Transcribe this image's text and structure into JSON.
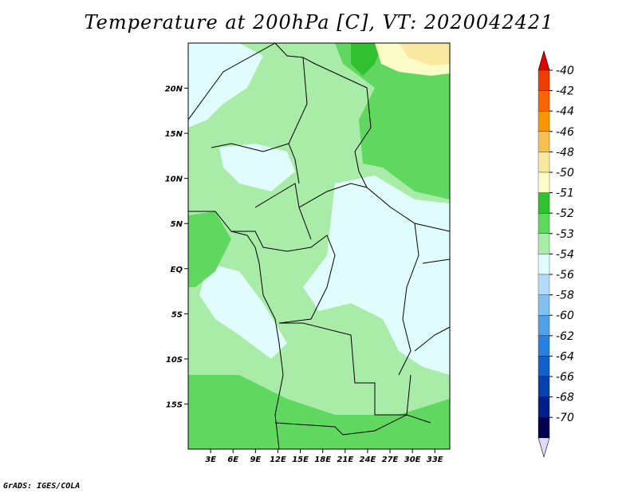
{
  "title": "Temperature at 200hPa [C], VT: 2020042421",
  "credit": "GrADS: IGES/COLA",
  "map": {
    "lon_range": [
      0,
      35
    ],
    "lat_range": [
      -20,
      25
    ],
    "lon_ticks": [
      {
        "value": 3,
        "label": "3E"
      },
      {
        "value": 6,
        "label": "6E"
      },
      {
        "value": 9,
        "label": "9E"
      },
      {
        "value": 12,
        "label": "12E"
      },
      {
        "value": 15,
        "label": "15E"
      },
      {
        "value": 18,
        "label": "18E"
      },
      {
        "value": 21,
        "label": "21E"
      },
      {
        "value": 24,
        "label": "24E"
      },
      {
        "value": 27,
        "label": "27E"
      },
      {
        "value": 30,
        "label": "30E"
      },
      {
        "value": 33,
        "label": "33E"
      }
    ],
    "lat_ticks": [
      {
        "value": 20,
        "label": "20N"
      },
      {
        "value": 15,
        "label": "15N"
      },
      {
        "value": 10,
        "label": "10N"
      },
      {
        "value": 5,
        "label": "5N"
      },
      {
        "value": 0,
        "label": "EQ"
      },
      {
        "value": -5,
        "label": "5S"
      },
      {
        "value": -10,
        "label": "10S"
      },
      {
        "value": -15,
        "label": "15S"
      }
    ]
  },
  "legend": {
    "labels": [
      "-40",
      "-42",
      "-44",
      "-46",
      "-48",
      "-50",
      "-51",
      "-52",
      "-53",
      "-54",
      "-56",
      "-58",
      "-60",
      "-62",
      "-64",
      "-66",
      "-68",
      "-70"
    ],
    "colors": [
      "#e00000",
      "#f03c00",
      "#f86400",
      "#f89600",
      "#f8c050",
      "#f8e8a0",
      "#fcfcc8",
      "#30c030",
      "#60d860",
      "#a8eca8",
      "#e0fcfc",
      "#b4dcf8",
      "#82c0f0",
      "#50a0e8",
      "#2880e0",
      "#1060d0",
      "#0840b0",
      "#002088",
      "#000050",
      "#dcdcf8"
    ]
  }
}
